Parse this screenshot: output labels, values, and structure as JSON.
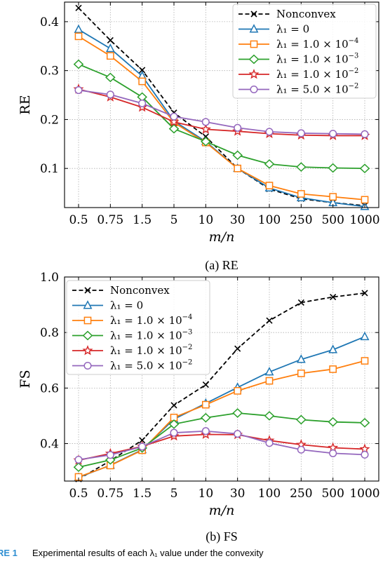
{
  "chart_data": [
    {
      "type": "line",
      "caption": "(a) RE",
      "xlabel": "m/n",
      "ylabel": "RE",
      "categories": [
        "0.5",
        "0.75",
        "1.5",
        "5",
        "10",
        "30",
        "100",
        "250",
        "500",
        "1000"
      ],
      "ylim": [
        0.02,
        0.44
      ],
      "yticks": [
        "0.1",
        "0.2",
        "0.3",
        "0.4"
      ],
      "ytick_values": [
        0.1,
        0.2,
        0.3,
        0.4
      ],
      "grid": true,
      "legend_position": "top-right",
      "series": [
        {
          "name": "Nonconvex",
          "color": "#000000",
          "marker": "x",
          "dashed": true,
          "values": [
            0.428,
            0.362,
            0.301,
            0.214,
            0.165,
            0.1,
            0.058,
            0.038,
            0.03,
            0.024
          ]
        },
        {
          "name": "λ1 = 0",
          "color": "#1f77b4",
          "marker": "triangle",
          "dashed": false,
          "values": [
            0.384,
            0.345,
            0.289,
            0.197,
            0.155,
            0.1,
            0.06,
            0.04,
            0.03,
            0.022
          ]
        },
        {
          "name": "λ1 = 1.0×10^-4",
          "color": "#ff7f0e",
          "marker": "square",
          "dashed": false,
          "values": [
            0.37,
            0.33,
            0.278,
            0.194,
            0.153,
            0.1,
            0.065,
            0.048,
            0.042,
            0.036
          ]
        },
        {
          "name": "λ1 = 1.0×10^-3",
          "color": "#2ca02c",
          "marker": "diamond",
          "dashed": false,
          "values": [
            0.313,
            0.286,
            0.246,
            0.181,
            0.155,
            0.127,
            0.109,
            0.103,
            0.101,
            0.1
          ]
        },
        {
          "name": "λ1 = 1.0×10^-2",
          "color": "#d62728",
          "marker": "star",
          "dashed": false,
          "values": [
            0.262,
            0.246,
            0.225,
            0.195,
            0.18,
            0.176,
            0.171,
            0.168,
            0.167,
            0.167
          ]
        },
        {
          "name": "λ1 = 5.0×10^-2",
          "color": "#9467bd",
          "marker": "circle",
          "dashed": false,
          "values": [
            0.26,
            0.251,
            0.233,
            0.206,
            0.195,
            0.183,
            0.175,
            0.172,
            0.171,
            0.17
          ]
        }
      ],
      "legend": [
        {
          "base": "Nonconvex",
          "sup": ""
        },
        {
          "base": "λ₁ = 0",
          "sup": ""
        },
        {
          "base": "λ₁ = 1.0 × 10",
          "sup": "−4"
        },
        {
          "base": "λ₁ = 1.0 × 10",
          "sup": "−3"
        },
        {
          "base": "λ₁ = 1.0 × 10",
          "sup": "−2"
        },
        {
          "base": "λ₁ = 5.0 × 10",
          "sup": "−2"
        }
      ]
    },
    {
      "type": "line",
      "caption": "(b) FS",
      "xlabel": "m/n",
      "ylabel": "FS",
      "categories": [
        "0.5",
        "0.75",
        "1.5",
        "5",
        "10",
        "30",
        "100",
        "250",
        "500",
        "1000"
      ],
      "ylim": [
        0.265,
        1.0
      ],
      "yticks": [
        "0.4",
        "0.6",
        "0.8",
        "1.0"
      ],
      "ytick_values": [
        0.4,
        0.6,
        0.8,
        1.0
      ],
      "grid": true,
      "legend_position": "top-left",
      "series": [
        {
          "name": "Nonconvex",
          "color": "#000000",
          "marker": "x",
          "dashed": true,
          "values": [
            0.272,
            0.338,
            0.412,
            0.538,
            0.612,
            0.742,
            0.843,
            0.908,
            0.928,
            0.942
          ]
        },
        {
          "name": "λ1 = 0",
          "color": "#1f77b4",
          "marker": "triangle",
          "dashed": false,
          "values": [
            0.278,
            0.322,
            0.378,
            0.488,
            0.545,
            0.602,
            0.658,
            0.703,
            0.738,
            0.785
          ]
        },
        {
          "name": "λ1 = 1.0×10^-4",
          "color": "#ff7f0e",
          "marker": "square",
          "dashed": false,
          "values": [
            0.28,
            0.321,
            0.376,
            0.494,
            0.54,
            0.59,
            0.626,
            0.653,
            0.668,
            0.698
          ]
        },
        {
          "name": "λ1 = 1.0×10^-3",
          "color": "#2ca02c",
          "marker": "diamond",
          "dashed": false,
          "values": [
            0.315,
            0.341,
            0.384,
            0.47,
            0.493,
            0.51,
            0.5,
            0.486,
            0.478,
            0.475
          ]
        },
        {
          "name": "λ1 = 1.0×10^-2",
          "color": "#d62728",
          "marker": "star",
          "dashed": false,
          "values": [
            0.34,
            0.364,
            0.39,
            0.427,
            0.433,
            0.432,
            0.411,
            0.396,
            0.385,
            0.38
          ]
        },
        {
          "name": "λ1 = 5.0×10^-2",
          "color": "#9467bd",
          "marker": "circle",
          "dashed": false,
          "values": [
            0.342,
            0.359,
            0.389,
            0.439,
            0.445,
            0.435,
            0.402,
            0.378,
            0.365,
            0.36
          ]
        }
      ],
      "legend": [
        {
          "base": "Nonconvex",
          "sup": ""
        },
        {
          "base": "λ₁ = 0",
          "sup": ""
        },
        {
          "base": "λ₁ = 1.0 × 10",
          "sup": "−4"
        },
        {
          "base": "λ₁ = 1.0 × 10",
          "sup": "−3"
        },
        {
          "base": "λ₁ = 1.0 × 10",
          "sup": "−2"
        },
        {
          "base": "λ₁ = 5.0 × 10",
          "sup": "−2"
        }
      ]
    }
  ],
  "footer": {
    "label": "RE 1",
    "text": "Experimental results of each λ₁ value under the convexity"
  }
}
